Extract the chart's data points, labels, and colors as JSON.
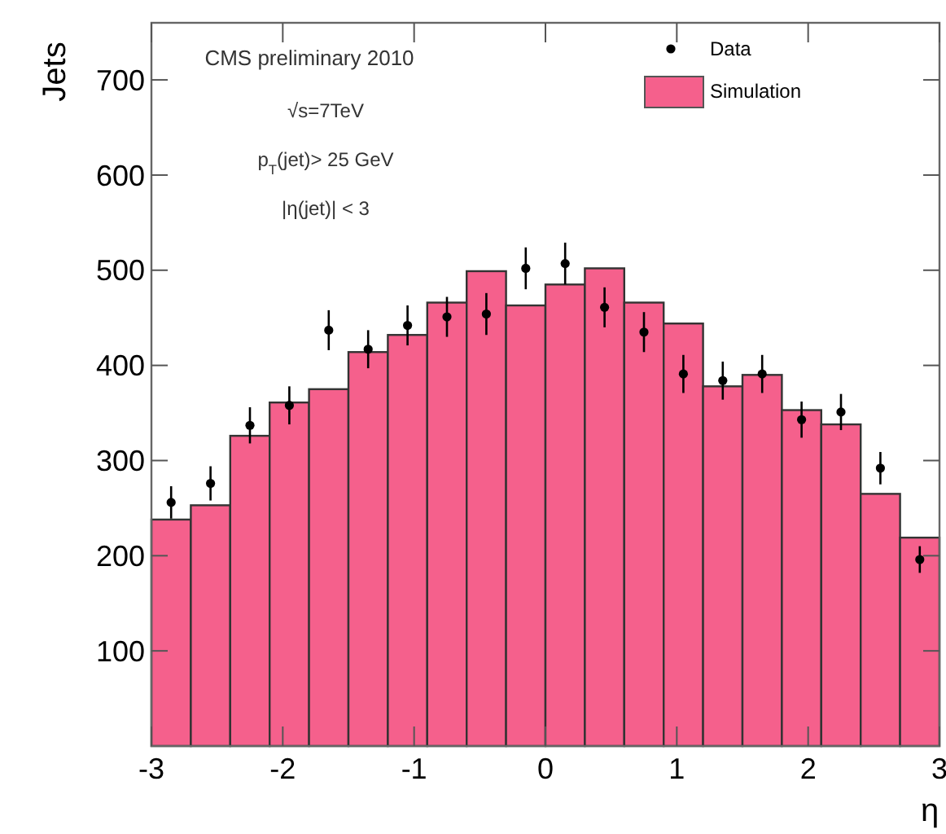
{
  "chart_data": {
    "type": "histogram",
    "xlabel": "η",
    "ylabel": "Jets",
    "annotations": [
      "CMS preliminary 2010",
      "√s=7TeV",
      "p$_{T}$(jet)> 25 GeV",
      "|η(jet)| < 3"
    ],
    "bins": [
      -3,
      -2.7,
      -2.4,
      -2.1,
      -1.8,
      -1.5,
      -1.2,
      -0.9,
      -0.6,
      -0.3,
      0,
      0.3,
      0.6,
      0.9,
      1.2,
      1.5,
      1.8,
      2.1,
      2.4,
      2.7,
      3
    ],
    "series": [
      {
        "name": "Data",
        "type": "scatter",
        "color": "#000000",
        "x": [
          -2.85,
          -2.55,
          -2.25,
          -1.95,
          -1.65,
          -1.35,
          -1.05,
          -0.75,
          -0.45,
          -0.15,
          0.15,
          0.45,
          0.75,
          1.05,
          1.35,
          1.65,
          1.95,
          2.25,
          2.55,
          2.85
        ],
        "values": [
          256,
          276,
          337,
          358,
          437,
          417,
          442,
          451,
          454,
          502,
          507,
          461,
          435,
          391,
          384,
          391,
          343,
          351,
          292,
          196
        ],
        "errors": [
          17,
          18,
          19,
          20,
          21,
          20,
          21,
          21,
          22,
          22,
          22,
          21,
          21,
          20,
          20,
          20,
          19,
          19,
          17,
          14
        ]
      },
      {
        "name": "Simulation",
        "color": "#f5608c",
        "values": [
          238,
          253,
          326,
          361,
          375,
          414,
          432,
          466,
          499,
          463,
          485,
          502,
          466,
          444,
          378,
          390,
          353,
          338,
          265,
          219
        ]
      }
    ],
    "xlim": [
      -3,
      3
    ],
    "ylim": [
      0,
      760
    ],
    "xticks": [
      -3,
      -2,
      -1,
      0,
      1,
      2,
      3
    ],
    "yticks": [
      100,
      200,
      300,
      400,
      500,
      600,
      700
    ],
    "marker": "circle",
    "legend": "top right",
    "grid": false
  }
}
